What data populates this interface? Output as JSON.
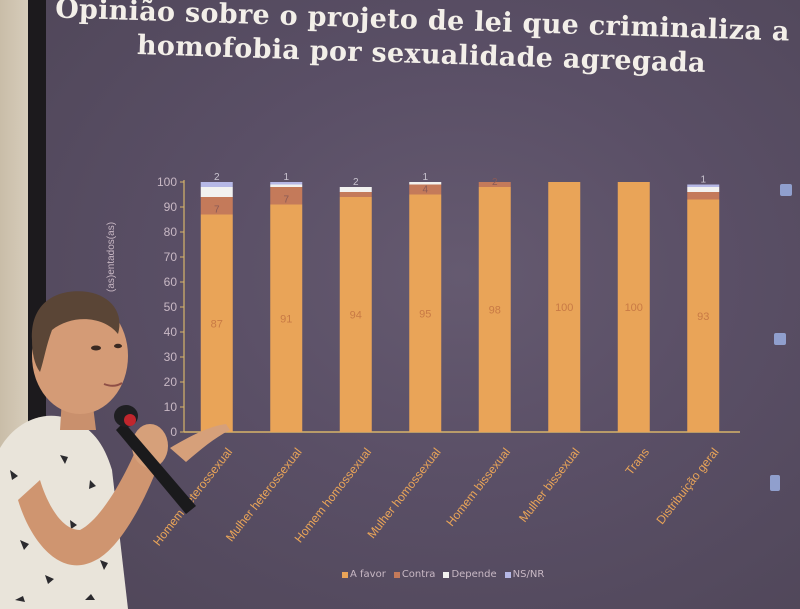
{
  "title_line1": "Opinião sobre o projeto de lei que criminaliza a",
  "title_line2": "homofobia por sexualidade agregada",
  "colors": {
    "a_favor": "#e9a458",
    "contra": "#c47a5a",
    "depende": "#f2f2f0",
    "nsnr": "#b6b8e6",
    "axis": "#d7b46a",
    "text": "#c8b8c4"
  },
  "chart_data": {
    "type": "bar",
    "stacked": true,
    "ylabel": "(as)entados(as)",
    "ylim": [
      0,
      100
    ],
    "yticks": [
      "0",
      "10",
      "20",
      "30",
      "40",
      "50",
      "60",
      "70",
      "80",
      "90",
      "100"
    ],
    "categories": [
      "Homem heterossexual",
      "Mulher heterossexual",
      "Homem homossexual",
      "Mulher homossexual",
      "Homem bissexual",
      "Mulher bissexual",
      "Trans",
      "Distribuição geral"
    ],
    "series": [
      {
        "name": "A favor",
        "values": [
          87,
          91,
          94,
          95,
          98,
          100,
          100,
          93
        ]
      },
      {
        "name": "Contra",
        "values": [
          7,
          7,
          2,
          4,
          2,
          0,
          0,
          3
        ]
      },
      {
        "name": "Depende",
        "values": [
          4,
          1,
          2,
          1,
          0,
          0,
          0,
          2
        ]
      },
      {
        "name": "NS/NR",
        "values": [
          2,
          1,
          0,
          0,
          0,
          0,
          0,
          1
        ]
      }
    ],
    "data_labels": [
      {
        "a_favor": "87",
        "contra": "7",
        "top": "2"
      },
      {
        "a_favor": "91",
        "contra": "7",
        "top": "1"
      },
      {
        "a_favor": "94",
        "contra": "",
        "top": "2"
      },
      {
        "a_favor": "95",
        "contra": "4",
        "top": "1"
      },
      {
        "a_favor": "98",
        "contra": "2",
        "top": ""
      },
      {
        "a_favor": "100",
        "contra": "",
        "top": ""
      },
      {
        "a_favor": "100",
        "contra": "",
        "top": ""
      },
      {
        "a_favor": "93",
        "contra": "",
        "top": "1"
      }
    ],
    "legend": [
      "A favor",
      "Contra",
      "Depende",
      "NS/NR"
    ],
    "legend_position": "bottom"
  }
}
